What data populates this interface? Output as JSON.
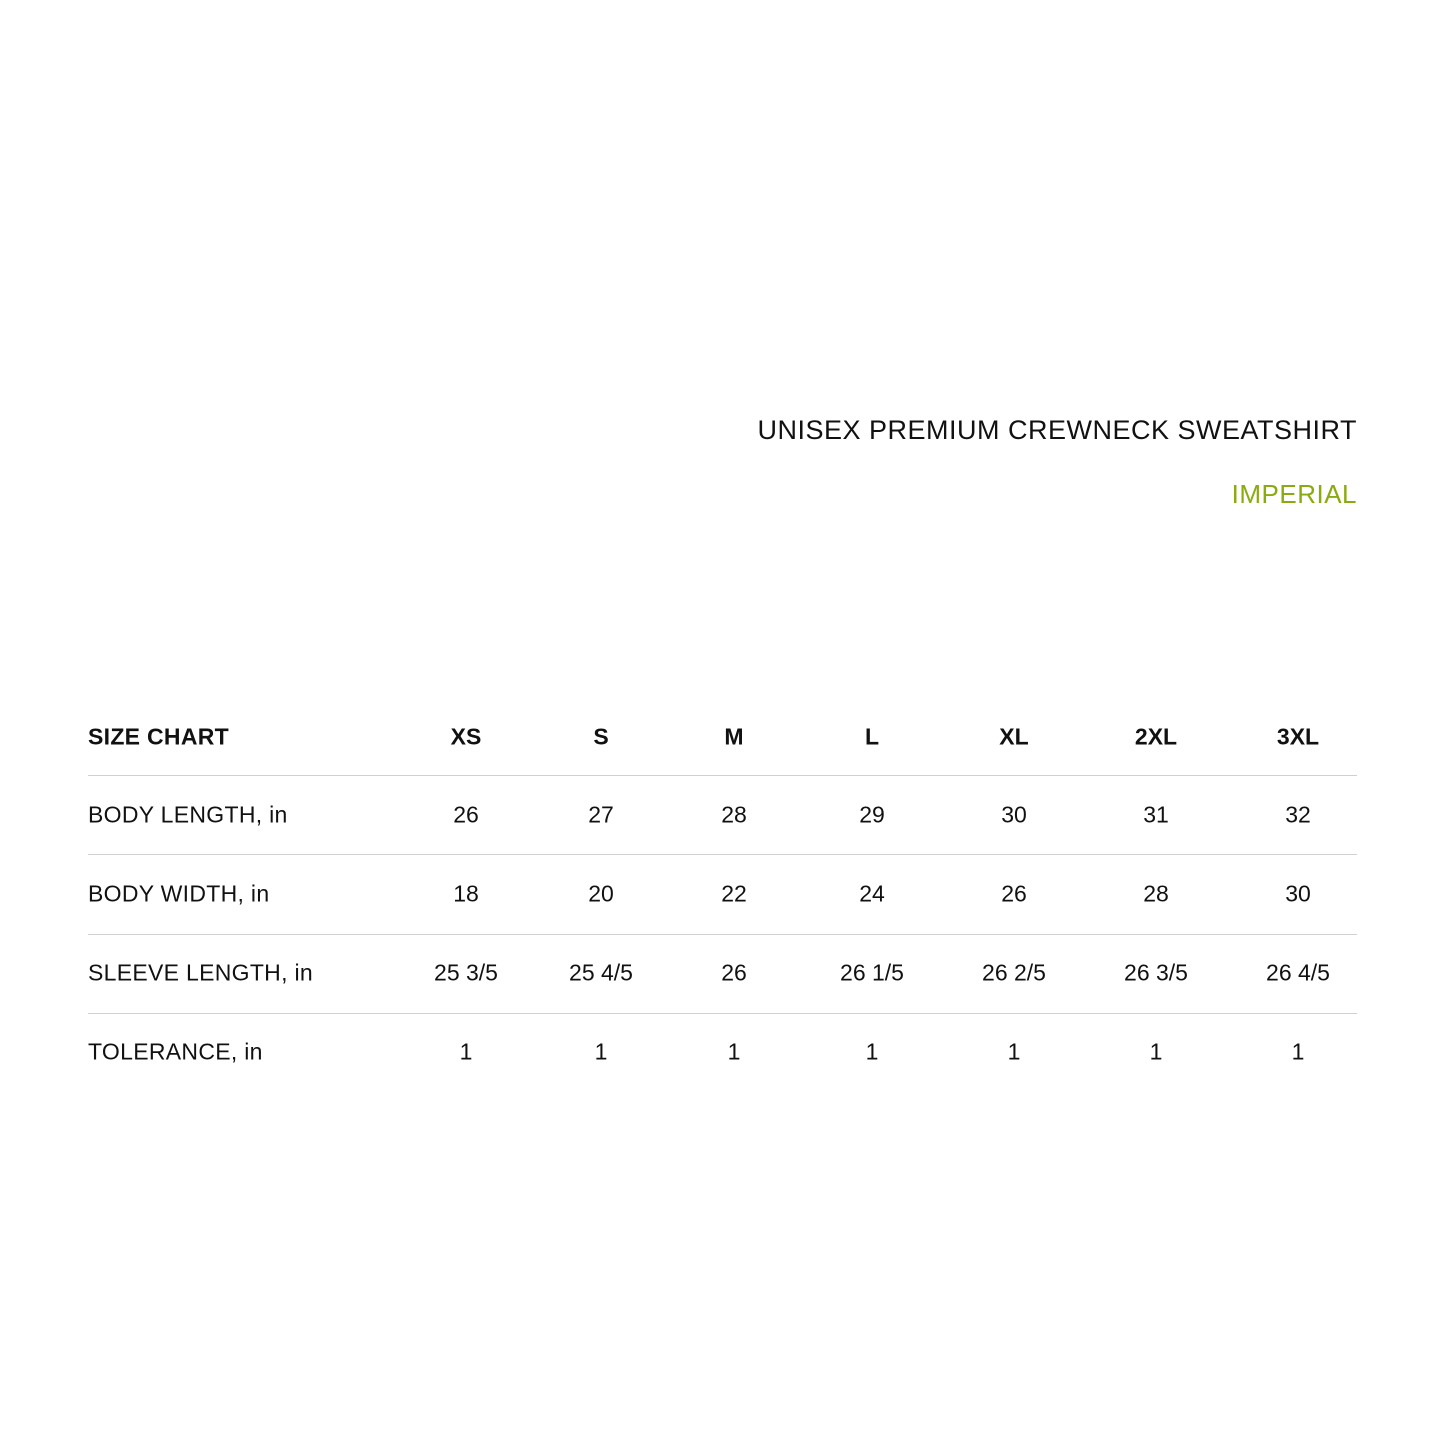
{
  "title": "UNISEX PREMIUM CREWNECK SWEATSHIRT",
  "subtitle": "IMPERIAL",
  "accent_color": "#8aab0f",
  "table": {
    "header_label": "SIZE CHART",
    "sizes": [
      "XS",
      "S",
      "M",
      "L",
      "XL",
      "2XL",
      "3XL"
    ],
    "rows": [
      {
        "label": "BODY LENGTH, in",
        "values": [
          "26",
          "27",
          "28",
          "29",
          "30",
          "31",
          "32"
        ]
      },
      {
        "label": "BODY WIDTH, in",
        "values": [
          "18",
          "20",
          "22",
          "24",
          "26",
          "28",
          "30"
        ]
      },
      {
        "label": "SLEEVE LENGTH, in",
        "values": [
          "25 3/5",
          "25 4/5",
          "26",
          "26 1/5",
          "26 2/5",
          "26 3/5",
          "26 4/5"
        ]
      },
      {
        "label": "TOLERANCE, in",
        "values": [
          "1",
          "1",
          "1",
          "1",
          "1",
          "1",
          "1"
        ]
      }
    ]
  }
}
